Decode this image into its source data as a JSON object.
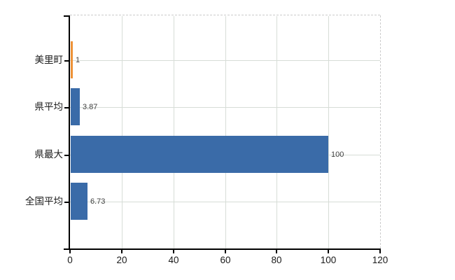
{
  "chart_data": {
    "type": "bar",
    "orientation": "horizontal",
    "title": "",
    "xlabel": "",
    "ylabel": "",
    "categories": [
      "美里町",
      "県平均",
      "県最大",
      "全国平均"
    ],
    "values": [
      1,
      3.87,
      100,
      6.73
    ],
    "value_labels": [
      "1",
      "3.87",
      "100",
      "6.73"
    ],
    "bar_colors": [
      "#ee9237",
      "#3a6ba8",
      "#3a6ba8",
      "#3a6ba8"
    ],
    "x_ticks": [
      "0",
      "20",
      "40",
      "60",
      "80",
      "100",
      "120"
    ],
    "x_tick_values": [
      0,
      20,
      40,
      60,
      80,
      100,
      120
    ],
    "xlim": [
      0,
      120
    ],
    "grid": "on",
    "legend": "none"
  },
  "style": {
    "background": "#ffffff",
    "bar_color": "#3a6ba8",
    "highlight_bar_color": "#ee9237",
    "axis_color": "#000000",
    "gridline_color": "#d7ddd7",
    "dashed_border_color": "#cccccc",
    "label_color": "#1a1a1a",
    "value_label_color": "#404040"
  }
}
